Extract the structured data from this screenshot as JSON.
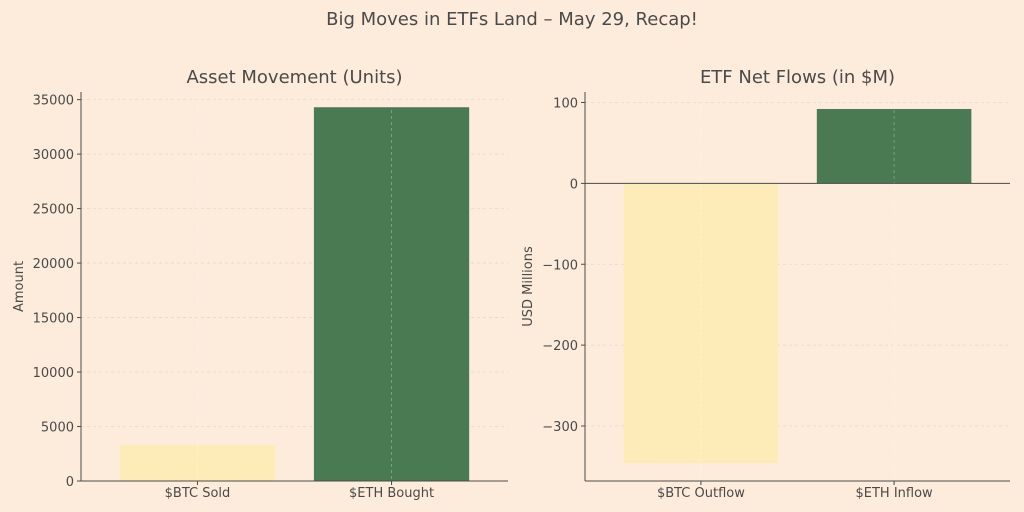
{
  "figure": {
    "title": "Big Moves in ETFs Land – May 29, Recap!"
  },
  "colors": {
    "background": "#fdecdb",
    "bar_light": "#feecb8",
    "bar_dark": "#497a52",
    "axis": "#4a4a4a",
    "grid": "#e6d6c2",
    "text": "#4a4a4a"
  },
  "chart_data": [
    {
      "type": "bar",
      "title": "Asset Movement (Units)",
      "xlabel": "",
      "ylabel": "Amount",
      "categories": [
        "$BTC Sold",
        "$ETH Bought"
      ],
      "values": [
        3300,
        34300
      ],
      "bar_colors": [
        "#feecb8",
        "#497a52"
      ],
      "ylim": [
        0,
        35700
      ],
      "yticks": [
        0,
        5000,
        10000,
        15000,
        20000,
        25000,
        30000,
        35000
      ],
      "ytick_labels": [
        "0",
        "5000",
        "10000",
        "15000",
        "20000",
        "25000",
        "30000",
        "35000"
      ],
      "grid": true,
      "zero_line": false
    },
    {
      "type": "bar",
      "title": "ETF Net Flows (in $M)",
      "xlabel": "",
      "ylabel": "USD Millions",
      "categories": [
        "$BTC Outflow",
        "$ETH Inflow"
      ],
      "values": [
        -346,
        92
      ],
      "bar_colors": [
        "#feecb8",
        "#497a52"
      ],
      "ylim": [
        -368,
        113
      ],
      "yticks": [
        -300,
        -200,
        -100,
        0,
        100
      ],
      "ytick_labels": [
        "−300",
        "−200",
        "−100",
        "0",
        "100"
      ],
      "grid": true,
      "zero_line": true
    }
  ]
}
